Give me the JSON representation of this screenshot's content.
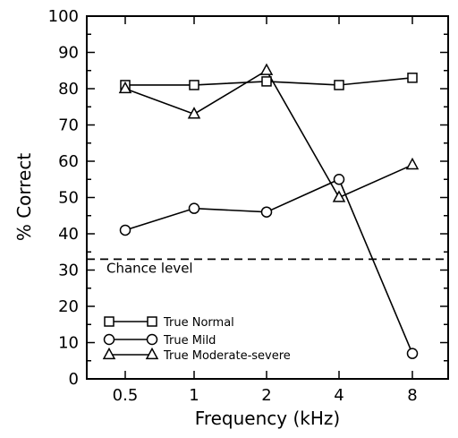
{
  "chart_data": {
    "type": "line",
    "xlabel": "Frequency (kHz)",
    "ylabel": "% Correct",
    "categories": [
      "0.5",
      "1",
      "2",
      "4",
      "8"
    ],
    "ylim": [
      0,
      100
    ],
    "yticks": [
      0,
      10,
      20,
      30,
      40,
      50,
      60,
      70,
      80,
      90,
      100
    ],
    "grid": false,
    "legend_position": "bottom-left",
    "series": [
      {
        "name": "True Normal",
        "marker": "square",
        "values": [
          81,
          81,
          82,
          81,
          83
        ]
      },
      {
        "name": "True Mild",
        "marker": "circle",
        "values": [
          41,
          47,
          46,
          55,
          7
        ]
      },
      {
        "name": "True Moderate-severe",
        "marker": "triangle",
        "values": [
          80,
          73,
          85,
          50,
          59
        ]
      }
    ],
    "reference_line": {
      "value": 33,
      "style": "dashed",
      "label": "Chance level"
    }
  }
}
